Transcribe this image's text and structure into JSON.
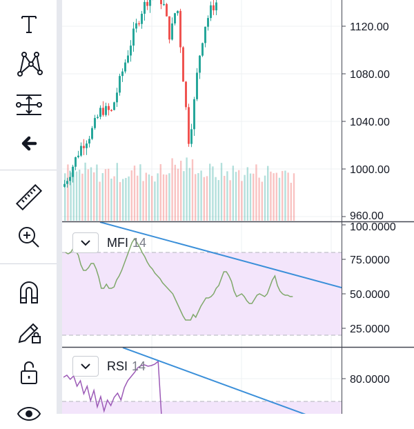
{
  "toolbar": {
    "tools": [
      {
        "name": "text-tool",
        "icon": "text-icon"
      },
      {
        "name": "pattern-tool",
        "icon": "pattern-icon"
      },
      {
        "name": "forecast-tool",
        "icon": "forecast-icon"
      },
      {
        "name": "back-tool",
        "icon": "arrow-left-icon"
      },
      {
        "name": "ruler-tool",
        "icon": "ruler-icon"
      },
      {
        "name": "zoom-tool",
        "icon": "zoom-in-icon"
      },
      {
        "name": "magnet-tool",
        "icon": "magnet-icon"
      },
      {
        "name": "lock-drawings-tool",
        "icon": "pencil-lock-icon"
      },
      {
        "name": "lock-tool",
        "icon": "unlock-icon"
      },
      {
        "name": "visibility-tool",
        "icon": "eye-icon"
      }
    ]
  },
  "price_pane": {
    "y_labels": [
      "1120.00",
      "1080.00",
      "1040.00",
      "1000.00",
      "960.00"
    ]
  },
  "mfi_pane": {
    "name": "MFI",
    "param": "14",
    "y_labels": [
      "100.0000",
      "75.0000",
      "50.0000",
      "25.0000"
    ]
  },
  "rsi_pane": {
    "name": "RSI",
    "param": "14",
    "y_labels": [
      "80.0000"
    ]
  },
  "colors": {
    "up": "#26a69a",
    "down": "#ef5350",
    "trendline": "#3a8fd9",
    "mfi_line": "#7fa86a",
    "rsi_line": "#9b59b6",
    "band": "#f3e5fb"
  }
}
